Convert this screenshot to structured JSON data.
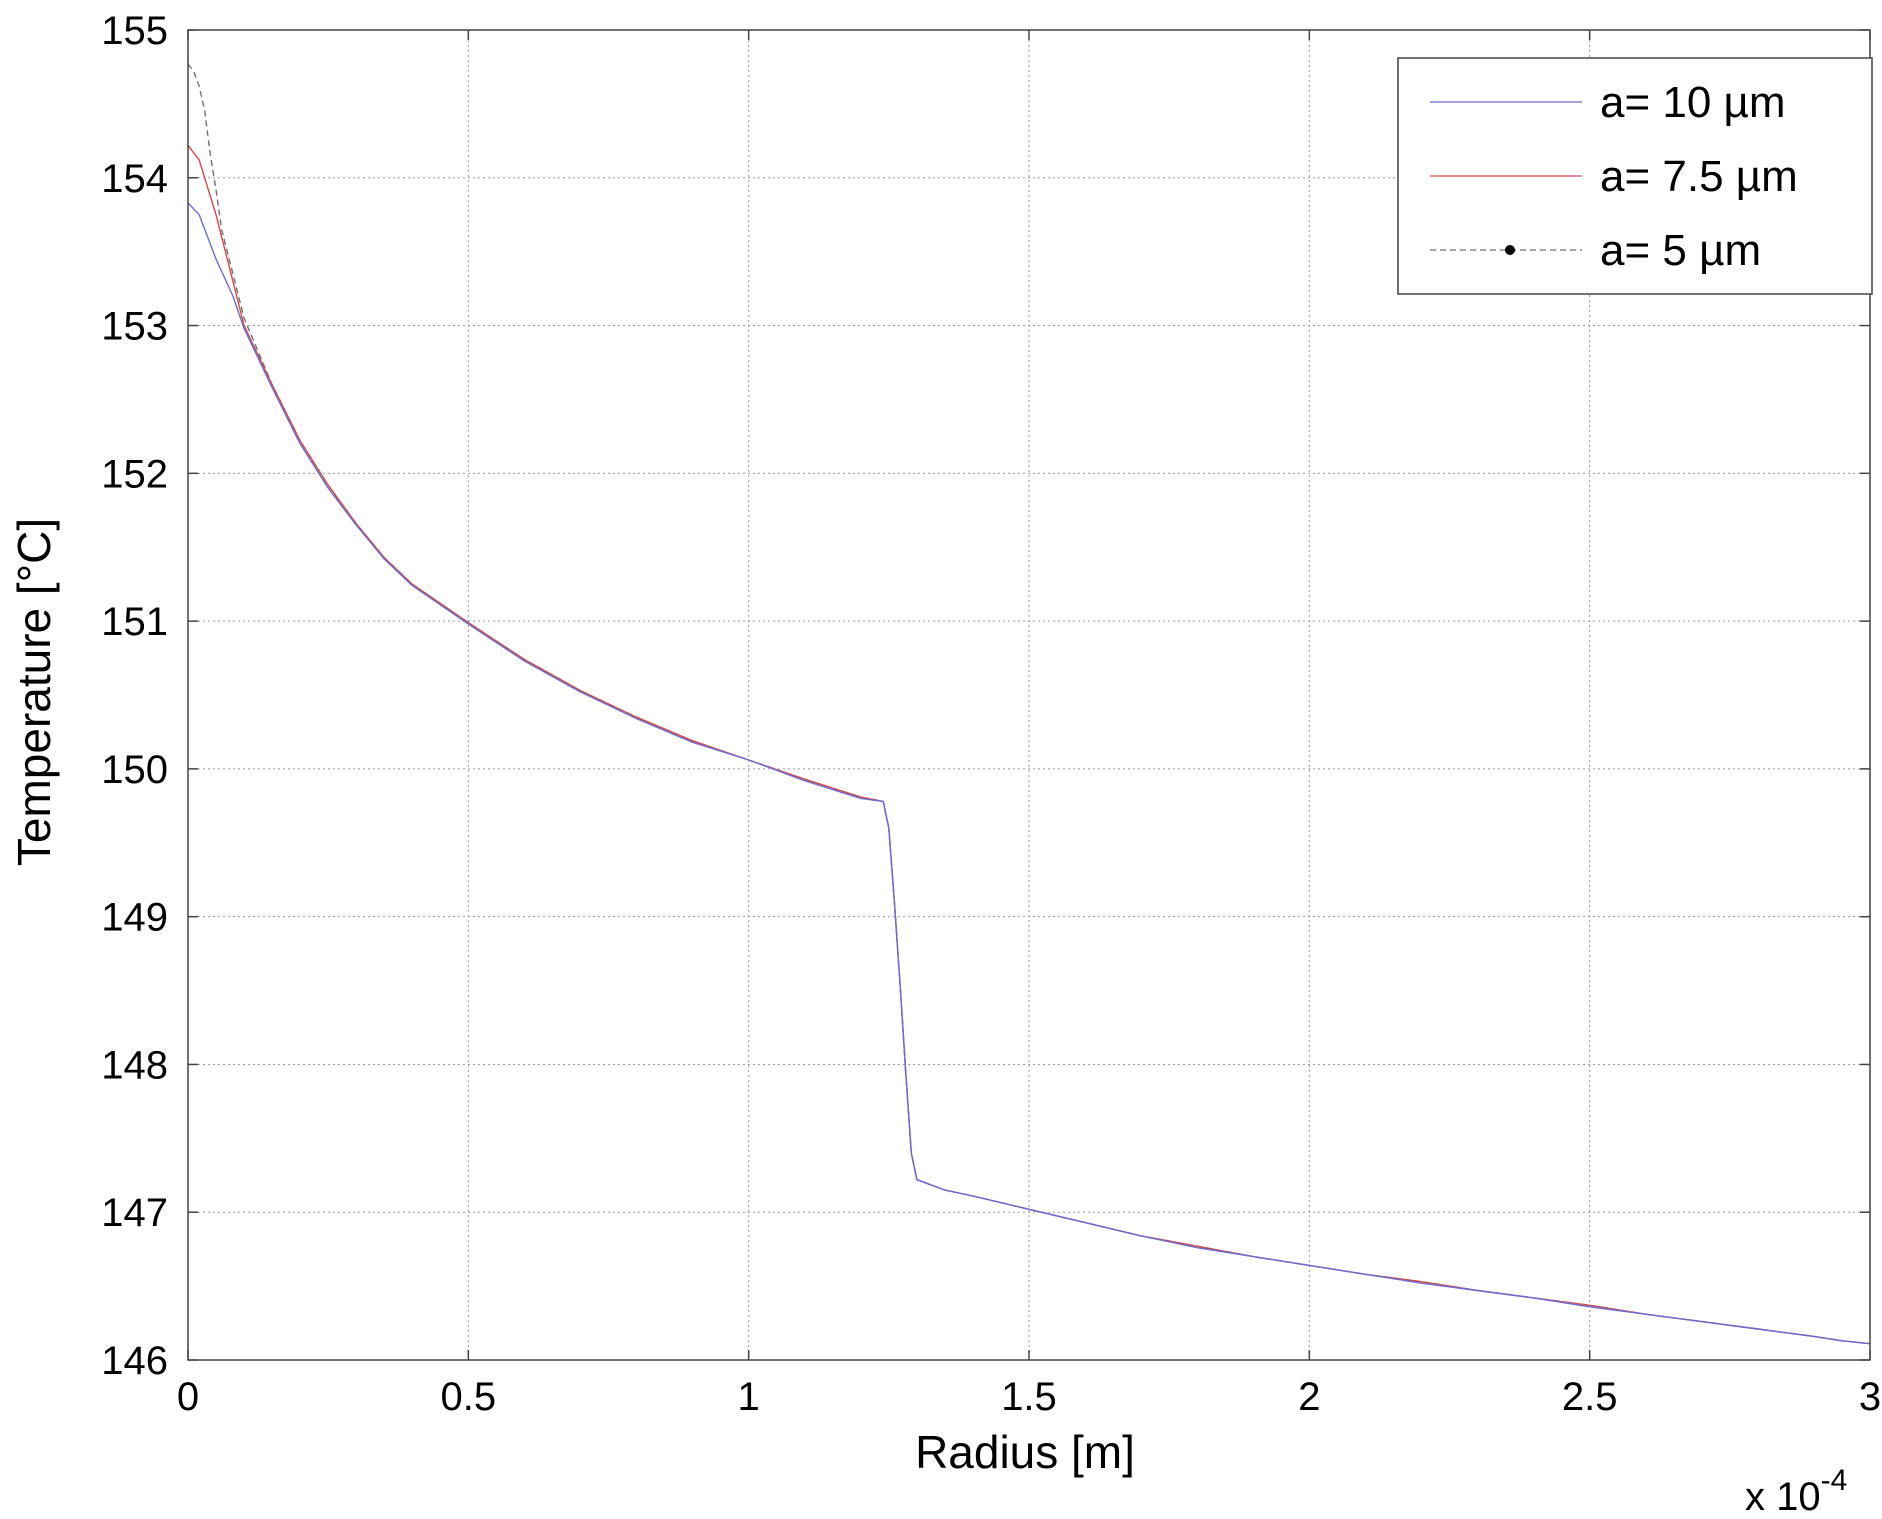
{
  "chart_data": {
    "type": "line",
    "xlabel": "Radius [m]",
    "ylabel": "Temperature [°C]",
    "x_multiplier_base": "x 10",
    "x_multiplier_exp": "-4",
    "xlim": [
      0,
      3
    ],
    "ylim": [
      146,
      155
    ],
    "xticks": [
      0,
      0.5,
      1,
      1.5,
      2,
      2.5,
      3
    ],
    "xtick_labels": [
      "0",
      "0.5",
      "1",
      "1.5",
      "2",
      "2.5",
      "3"
    ],
    "yticks": [
      146,
      147,
      148,
      149,
      150,
      151,
      152,
      153,
      154,
      155
    ],
    "ytick_labels": [
      "146",
      "147",
      "148",
      "149",
      "150",
      "151",
      "152",
      "153",
      "154",
      "155"
    ],
    "grid": true,
    "legend_position": "top-right",
    "series": [
      {
        "name": "a= 10 µm",
        "color": "#6b6bd6",
        "style": "solid",
        "x": [
          0,
          0.02,
          0.05,
          0.08,
          0.1,
          0.15,
          0.2,
          0.25,
          0.3,
          0.35,
          0.4,
          0.5,
          0.6,
          0.7,
          0.8,
          0.9,
          1.0,
          1.1,
          1.2,
          1.24,
          1.25,
          1.26,
          1.27,
          1.28,
          1.29,
          1.3,
          1.35,
          1.4,
          1.5,
          1.6,
          1.7,
          1.8,
          1.9,
          2.0,
          2.1,
          2.2,
          2.3,
          2.4,
          2.5,
          2.6,
          2.7,
          2.8,
          2.9,
          2.95,
          3.0
        ],
        "y": [
          153.83,
          153.75,
          153.45,
          153.2,
          152.98,
          152.58,
          152.2,
          151.9,
          151.65,
          151.42,
          151.24,
          150.98,
          150.73,
          150.52,
          150.34,
          150.18,
          150.06,
          149.92,
          149.8,
          149.78,
          149.6,
          149.1,
          148.55,
          147.95,
          147.4,
          147.22,
          147.15,
          147.11,
          147.02,
          146.93,
          146.84,
          146.76,
          146.7,
          146.64,
          146.58,
          146.52,
          146.47,
          146.42,
          146.36,
          146.31,
          146.26,
          146.21,
          146.16,
          146.13,
          146.11
        ]
      },
      {
        "name": "a= 7.5 µm",
        "color": "#d64a4a",
        "style": "solid",
        "x": [
          0,
          0.02,
          0.05,
          0.08,
          0.1,
          0.15,
          0.2,
          0.25,
          0.3,
          0.35,
          0.4,
          0.5,
          0.6,
          0.7,
          0.8,
          0.9,
          1.0,
          1.1,
          1.2,
          1.24,
          1.25,
          1.26,
          1.27,
          1.28,
          1.29,
          1.3,
          1.35,
          1.4,
          1.5,
          1.6,
          1.7,
          1.8,
          1.9,
          2.0,
          2.1,
          2.2,
          2.3,
          2.4,
          2.5,
          2.6,
          2.7,
          2.8,
          2.9,
          2.95,
          3.0
        ],
        "y": [
          154.22,
          154.12,
          153.75,
          153.3,
          153.0,
          152.6,
          152.22,
          151.92,
          151.66,
          151.43,
          151.25,
          150.99,
          150.74,
          150.53,
          150.35,
          150.19,
          150.06,
          149.93,
          149.81,
          149.78,
          149.6,
          149.1,
          148.55,
          147.95,
          147.4,
          147.22,
          147.15,
          147.11,
          147.02,
          146.93,
          146.84,
          146.77,
          146.7,
          146.64,
          146.58,
          146.53,
          146.47,
          146.42,
          146.37,
          146.31,
          146.26,
          146.21,
          146.16,
          146.13,
          146.11
        ]
      },
      {
        "name": "a= 5 µm",
        "color": "#707070",
        "style": "dashed",
        "x": [
          0,
          0.01,
          0.02,
          0.03,
          0.04,
          0.05,
          0.06,
          0.08,
          0.1,
          0.15,
          0.2,
          0.25,
          0.3,
          0.35,
          0.4,
          0.5,
          0.6,
          0.7,
          0.8,
          0.9,
          1.0,
          1.1,
          1.2,
          1.24,
          1.25,
          1.26,
          1.27,
          1.28,
          1.29,
          1.3,
          1.35,
          1.4,
          1.5,
          1.6,
          1.7,
          1.8,
          1.9,
          2.0,
          2.1,
          2.2,
          2.3,
          2.4,
          2.5,
          2.6,
          2.7,
          2.8,
          2.9,
          2.95,
          3.0
        ],
        "y": [
          154.77,
          154.72,
          154.62,
          154.45,
          154.15,
          153.92,
          153.65,
          153.35,
          153.05,
          152.6,
          152.22,
          151.92,
          151.66,
          151.43,
          151.25,
          150.99,
          150.74,
          150.53,
          150.35,
          150.19,
          150.06,
          149.93,
          149.81,
          149.78,
          149.6,
          149.1,
          148.55,
          147.95,
          147.4,
          147.22,
          147.15,
          147.11,
          147.02,
          146.93,
          146.84,
          146.77,
          146.7,
          146.64,
          146.58,
          146.53,
          146.47,
          146.42,
          146.37,
          146.31,
          146.26,
          146.21,
          146.16,
          146.13,
          146.11
        ]
      }
    ]
  }
}
